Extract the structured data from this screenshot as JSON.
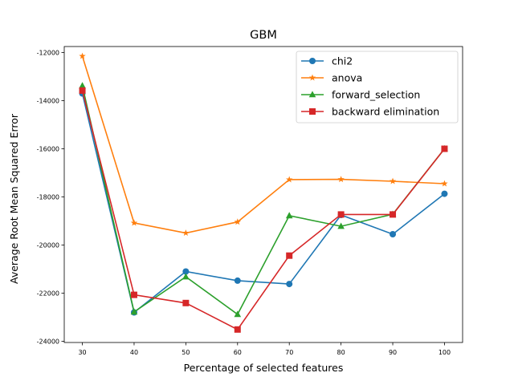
{
  "chart_data": {
    "type": "line",
    "title": "GBM",
    "xlabel": "Percentage of selected features",
    "ylabel": "Average Root Mean Squared Error",
    "x": [
      30,
      40,
      50,
      60,
      70,
      80,
      90,
      100
    ],
    "x_ticks": [
      "30",
      "40",
      "50",
      "60",
      "70",
      "80",
      "90",
      "100"
    ],
    "xlim": [
      26.5,
      103.5
    ],
    "ylim": [
      -24050,
      -11750
    ],
    "y_ticks": [
      "-24000",
      "-22000",
      "-20000",
      "-18000",
      "-16000",
      "-14000",
      "-12000"
    ],
    "y_tick_values": [
      -24000,
      -22000,
      -20000,
      -18000,
      -16000,
      -14000,
      -12000
    ],
    "grid": false,
    "legend_position": "top-right",
    "series": [
      {
        "name": "chi2",
        "color": "#1f77b4",
        "marker": "circle",
        "values": [
          -13700,
          -22800,
          -21100,
          -21480,
          -21620,
          -18750,
          -19550,
          -17870
        ]
      },
      {
        "name": "anova",
        "color": "#ff7f0e",
        "marker": "star",
        "values": [
          -12150,
          -19080,
          -19500,
          -19040,
          -17280,
          -17270,
          -17350,
          -17450
        ]
      },
      {
        "name": "forward_selection",
        "color": "#2ca02c",
        "marker": "triangle",
        "values": [
          -13380,
          -22780,
          -21320,
          -22880,
          -18780,
          -19220,
          -18720,
          -16000
        ]
      },
      {
        "name": "backward elimination",
        "color": "#d62728",
        "marker": "square",
        "values": [
          -13580,
          -22070,
          -22410,
          -23510,
          -20440,
          -18730,
          -18730,
          -16000
        ]
      }
    ]
  }
}
